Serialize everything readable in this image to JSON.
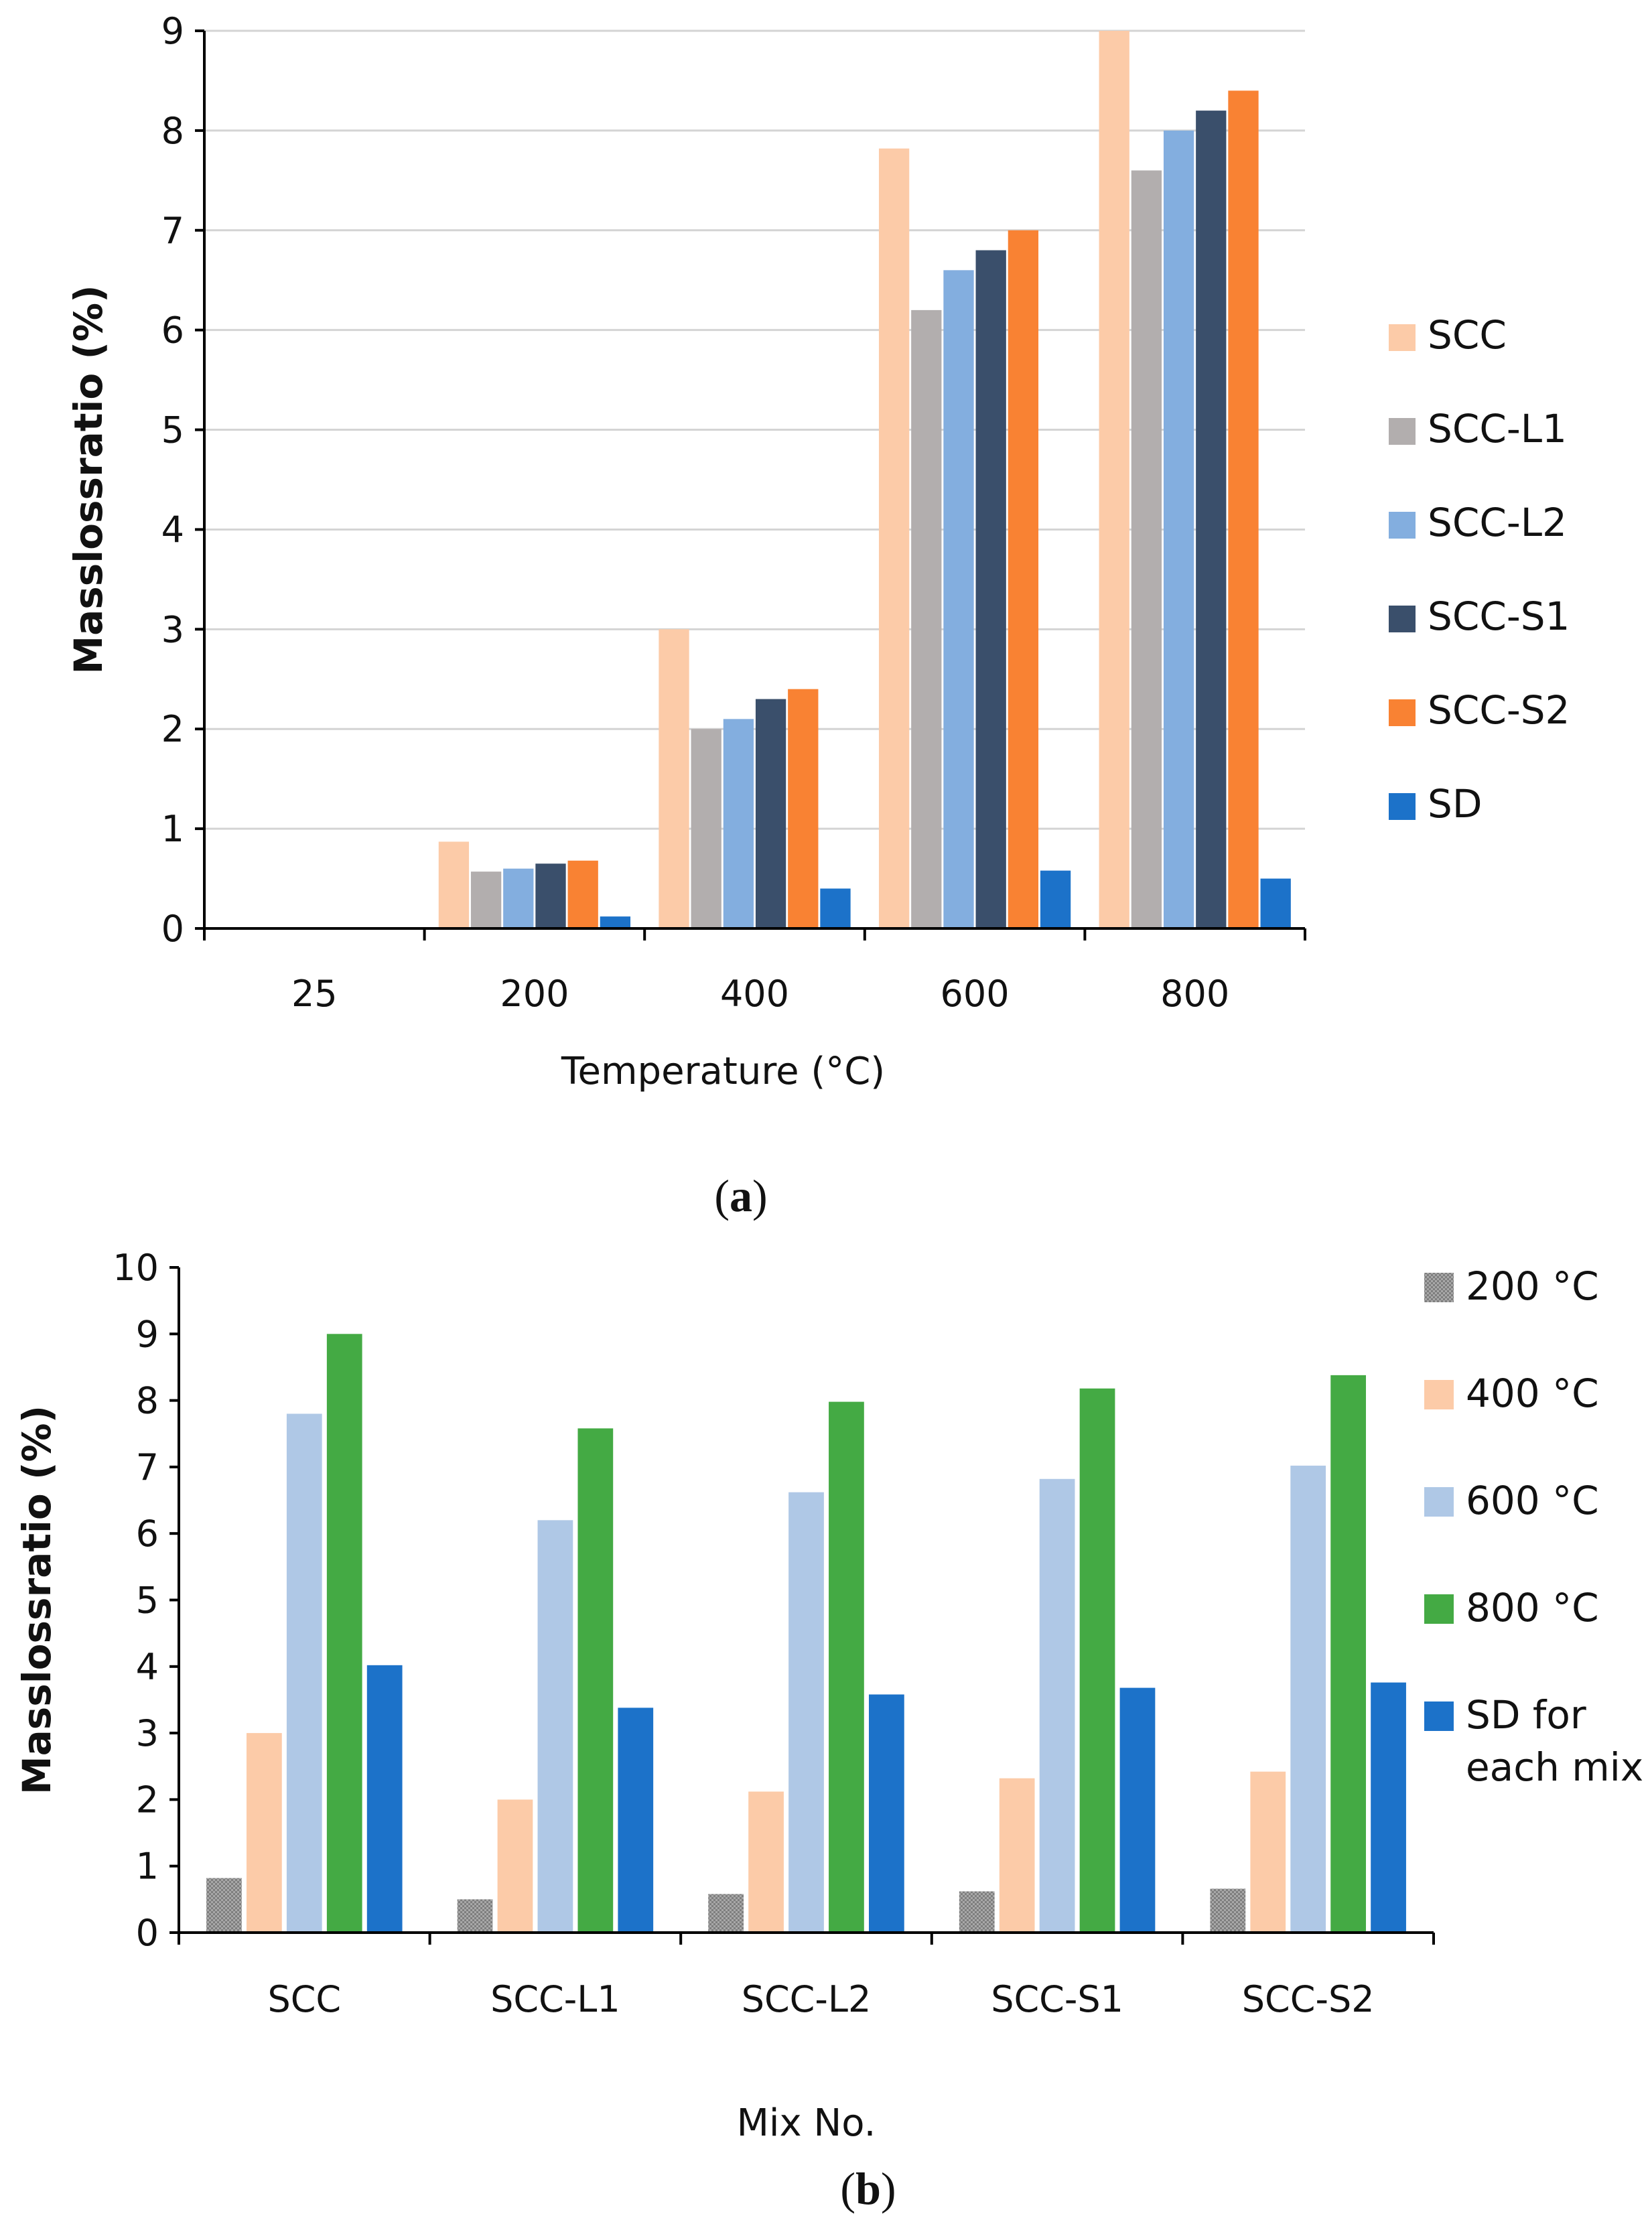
{
  "chart_data": [
    {
      "type": "bar",
      "panel_label": "a",
      "title": "",
      "xlabel": "Temperature (°C)",
      "ylabel": "Masslossratio (%)",
      "ylim": [
        0,
        9
      ],
      "yticks": [
        "0",
        "1",
        "2",
        "3",
        "4",
        "5",
        "6",
        "7",
        "8",
        "9"
      ],
      "grid": true,
      "legend_position": "right",
      "categories": [
        "25",
        "200",
        "400",
        "600",
        "800"
      ],
      "series": [
        {
          "name": "SCC",
          "color": "#FCCBA8",
          "values": [
            0,
            0.87,
            3.0,
            7.82,
            9.0
          ]
        },
        {
          "name": "SCC-L1",
          "color": "#B2AEAE",
          "values": [
            0,
            0.57,
            2.0,
            6.2,
            7.6
          ]
        },
        {
          "name": "SCC-L2",
          "color": "#83AEDF",
          "values": [
            0,
            0.6,
            2.1,
            6.6,
            8.0
          ]
        },
        {
          "name": "SCC-S1",
          "color": "#3A4F6B",
          "values": [
            0,
            0.65,
            2.3,
            6.8,
            8.2
          ]
        },
        {
          "name": "SCC-S2",
          "color": "#F98233",
          "values": [
            0,
            0.68,
            2.4,
            7.0,
            8.4
          ]
        },
        {
          "name": "SD",
          "color": "#1C72C9",
          "values": [
            0,
            0.12,
            0.4,
            0.58,
            0.5
          ]
        }
      ]
    },
    {
      "type": "bar",
      "panel_label": "b",
      "title": "",
      "xlabel": "Mix No.",
      "ylabel": "Masslossratio (%)",
      "ylim": [
        0,
        10
      ],
      "yticks": [
        "0",
        "1",
        "2",
        "3",
        "4",
        "5",
        "6",
        "7",
        "8",
        "9",
        "10"
      ],
      "grid": false,
      "legend_position": "right",
      "categories": [
        "SCC",
        "SCC-L1",
        "SCC-L2",
        "SCC-S1",
        "SCC-S2"
      ],
      "series": [
        {
          "name": "200  °C",
          "color": "#9A9A9A",
          "values": [
            0.82,
            0.5,
            0.58,
            0.62,
            0.66
          ]
        },
        {
          "name": "400 °C",
          "color": "#FCCBA8",
          "values": [
            3.0,
            2.0,
            2.12,
            2.32,
            2.42
          ]
        },
        {
          "name": "600 °C",
          "color": "#AFC8E6",
          "values": [
            7.8,
            6.2,
            6.62,
            6.82,
            7.02
          ]
        },
        {
          "name": "800 °C",
          "color": "#44AA44",
          "values": [
            9.0,
            7.58,
            7.98,
            8.18,
            8.38
          ]
        },
        {
          "name": "SD for each mix",
          "legend_lines": [
            "SD for",
            "each mix"
          ],
          "color": "#1C72C9",
          "values": [
            4.02,
            3.38,
            3.58,
            3.68,
            3.76
          ]
        }
      ]
    }
  ]
}
